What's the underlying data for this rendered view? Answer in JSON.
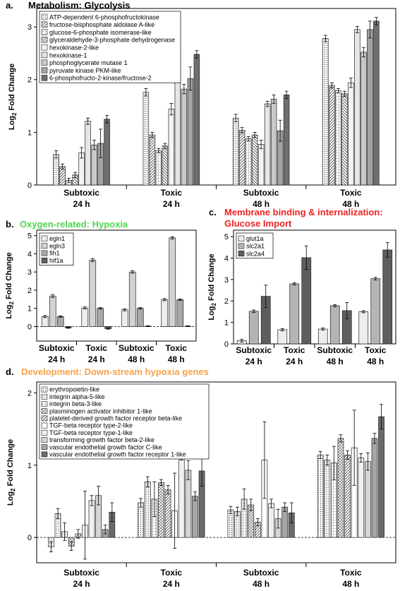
{
  "colors": {
    "title_green": "#4fd44f",
    "title_red": "#ee2222",
    "title_orange": "#f5a24a"
  },
  "chart_data": [
    {
      "id": "a",
      "type": "bar",
      "panel_letter": "a.",
      "title": "Metabolism: Glycolysis",
      "title_color": "#000000",
      "ylabel": "Log",
      "ylabel_sub": "2",
      "ylabel_rest": " Fold Change",
      "ylim": [
        0,
        3.35
      ],
      "yticks": [
        0,
        1,
        2,
        3
      ],
      "categories": [
        [
          "Subtoxic",
          "24 h"
        ],
        [
          "Toxic",
          "24 h"
        ],
        [
          "Subtoxic",
          "48 h"
        ],
        [
          "Toxic",
          "48 h"
        ]
      ],
      "legend_position": "top-left",
      "series": [
        {
          "name": "ATP-dependent 6-phosphofructokinase",
          "values": [
            0.58,
            1.76,
            1.27,
            2.78
          ],
          "errors": [
            0.07,
            0.07,
            0.07,
            0.06
          ],
          "fill": "#d4d4d4",
          "pattern": "dots"
        },
        {
          "name": "fructose-bisphosphate aldolase A-like",
          "values": [
            0.35,
            0.95,
            1.04,
            1.89
          ],
          "errors": [
            0.05,
            0.05,
            0.05,
            0.05
          ],
          "fill": "#ffffff",
          "pattern": "diag"
        },
        {
          "name": "glucose-6-phosphate isomerase-like",
          "values": [
            0.09,
            0.65,
            0.88,
            1.79
          ],
          "errors": [
            0.04,
            0.04,
            0.04,
            0.04
          ],
          "fill": "#ffffff",
          "pattern": "grid"
        },
        {
          "name": "glyceraldehyde-3-phosphate dehydrogenase",
          "values": [
            0.19,
            0.74,
            0.95,
            1.73
          ],
          "errors": [
            0.05,
            0.05,
            0.05,
            0.05
          ],
          "fill": "#ffffff",
          "pattern": "diag2"
        },
        {
          "name": "hexokinase-2-like",
          "values": [
            0.61,
            1.44,
            0.77,
            1.94
          ],
          "errors": [
            0.1,
            0.11,
            0.08,
            0.09
          ],
          "fill": "#f4f4f4",
          "pattern": "none"
        },
        {
          "name": "hexokinase-1",
          "values": [
            1.21,
            2.6,
            1.54,
            2.95
          ],
          "errors": [
            0.06,
            0.06,
            0.05,
            0.06
          ],
          "fill": "#e6e6e6",
          "pattern": "none"
        },
        {
          "name": "phosphoglycerate mutase 1",
          "values": [
            0.76,
            1.82,
            1.63,
            2.52
          ],
          "errors": [
            0.09,
            0.09,
            0.08,
            0.09
          ],
          "fill": "#c9c9c9",
          "pattern": "none"
        },
        {
          "name": "pyruvate kinase PKM-like",
          "values": [
            0.79,
            2.02,
            1.03,
            2.95
          ],
          "errors": [
            0.27,
            0.22,
            0.2,
            0.16
          ],
          "fill": "#a3a3a3",
          "pattern": "none"
        },
        {
          "name": "6-phosphofructo-2-kinase/fructose-2",
          "values": [
            1.25,
            2.48,
            1.71,
            3.11
          ],
          "errors": [
            0.07,
            0.07,
            0.07,
            0.07
          ],
          "fill": "#6f6f6f",
          "pattern": "none"
        }
      ]
    },
    {
      "id": "b",
      "type": "bar",
      "panel_letter": "b.",
      "title": "Oxygen-related: Hypoxia",
      "title_color": "#4fd44f",
      "ylabel": "Log",
      "ylabel_sub": "2",
      "ylabel_rest": " Fold Change",
      "ylim": [
        -0.8,
        5.3
      ],
      "yticks": [
        0,
        1,
        2,
        3,
        4,
        5
      ],
      "categories": [
        [
          "Subtoxic",
          "24 h"
        ],
        [
          "Toxic",
          "24 h"
        ],
        [
          "Subtoxic",
          "48 h"
        ],
        [
          "Toxic",
          "48 h"
        ]
      ],
      "legend_position": "top-left",
      "series": [
        {
          "name": "egln1",
          "values": [
            0.55,
            1.02,
            0.92,
            1.48
          ],
          "errors": [
            0.06,
            0.06,
            0.06,
            0.06
          ],
          "fill": "#ededed",
          "pattern": "none"
        },
        {
          "name": "egln3",
          "values": [
            1.68,
            3.65,
            3.0,
            4.88
          ],
          "errors": [
            0.08,
            0.08,
            0.07,
            0.06
          ],
          "fill": "#d2d2d2",
          "pattern": "none"
        },
        {
          "name": "fih1",
          "values": [
            0.55,
            1.0,
            1.0,
            1.48
          ],
          "errors": [
            0.04,
            0.04,
            0.04,
            0.04
          ],
          "fill": "#a8a8a8",
          "pattern": "none"
        },
        {
          "name": "hif1a",
          "values": [
            -0.07,
            -0.12,
            0.02,
            0.02
          ],
          "errors": [
            0.03,
            0.03,
            0.02,
            0.02
          ],
          "fill": "#5e5e5e",
          "pattern": "none"
        }
      ]
    },
    {
      "id": "c",
      "type": "bar",
      "panel_letter": "c.",
      "title": "Membrane binding & internalization:",
      "title2": "Glucose Import",
      "title_color": "#ee2222",
      "ylabel": "Log",
      "ylabel_sub": "2",
      "ylabel_rest": " Fold Change",
      "ylim": [
        0,
        5.3
      ],
      "yticks": [
        0,
        1,
        2,
        3,
        4,
        5
      ],
      "categories": [
        [
          "Subtoxic",
          "24 h"
        ],
        [
          "Toxic",
          "24 h"
        ],
        [
          "Subtoxic",
          "48 h"
        ],
        [
          "Toxic",
          "48 h"
        ]
      ],
      "legend_position": "top-left",
      "series": [
        {
          "name": "glut1a",
          "values": [
            0.15,
            0.66,
            0.69,
            1.5
          ],
          "errors": [
            0.06,
            0.05,
            0.05,
            0.05
          ],
          "fill": "#ededed",
          "pattern": "none"
        },
        {
          "name": "slc2a1",
          "values": [
            1.52,
            2.8,
            1.78,
            3.04
          ],
          "errors": [
            0.06,
            0.05,
            0.05,
            0.06
          ],
          "fill": "#b4b4b4",
          "pattern": "none"
        },
        {
          "name": "slc2a4",
          "values": [
            2.22,
            4.02,
            1.55,
            4.38
          ],
          "errors": [
            0.52,
            0.55,
            0.38,
            0.34
          ],
          "fill": "#5e5e5e",
          "pattern": "none"
        }
      ]
    },
    {
      "id": "d",
      "type": "bar",
      "panel_letter": "d.",
      "title": "Development: Down-stream hypoxia genes",
      "title_color": "#f5a24a",
      "ylabel": "Log",
      "ylabel_sub": "2",
      "ylabel_rest": " Fold Change",
      "ylim": [
        -0.35,
        2.15
      ],
      "yticks": [
        0,
        1,
        2
      ],
      "categories": [
        [
          "Subtoxic",
          "24 h"
        ],
        [
          "Toxic",
          "24 h"
        ],
        [
          "Subtoxic",
          "48 h"
        ],
        [
          "Toxic",
          "48 h"
        ]
      ],
      "legend_position": "top-left",
      "series": [
        {
          "name": "erythropoietin-like",
          "values": [
            -0.13,
            0.48,
            0.38,
            1.14
          ],
          "errors": [
            0.07,
            0.06,
            0.05,
            0.05
          ],
          "fill": "#ffffff",
          "pattern": "dots"
        },
        {
          "name": "integrin alpha-5-like",
          "values": [
            0.33,
            0.77,
            0.36,
            1.07
          ],
          "errors": [
            0.07,
            0.07,
            0.06,
            0.07
          ],
          "fill": "#ffffff",
          "pattern": "dots2"
        },
        {
          "name": "integrin beta-3-like",
          "values": [
            0.08,
            0.53,
            0.53,
            1.03
          ],
          "errors": [
            0.12,
            0.24,
            0.14,
            0.23
          ],
          "fill": "#ffffff",
          "pattern": "grid"
        },
        {
          "name": "plasminogen activator inhibitor 1-like",
          "values": [
            -0.12,
            0.76,
            0.45,
            1.37
          ],
          "errors": [
            0.06,
            0.04,
            0.08,
            0.05
          ],
          "fill": "#ffffff",
          "pattern": "grid2"
        },
        {
          "name": "platelet-derived growth factor receptor beta-like",
          "values": [
            0.05,
            0.66,
            0.21,
            1.14
          ],
          "errors": [
            0.06,
            0.06,
            0.05,
            0.06
          ],
          "fill": "#ffffff",
          "pattern": "diag"
        },
        {
          "name": "TGF-beta receptor type-2-like",
          "values": [
            0.17,
            0.37,
            1.07,
            1.24
          ],
          "errors": [
            0.47,
            0.52,
            0.53,
            0.52
          ],
          "fill": "#ffffff",
          "pattern": "none"
        },
        {
          "name": "TGF-beta receptor type-1-like",
          "values": [
            0.51,
            1.13,
            0.47,
            1.1
          ],
          "errors": [
            0.07,
            0.06,
            0.06,
            0.06
          ],
          "fill": "#f0f0f0",
          "pattern": "none"
        },
        {
          "name": "transforming growth factor beta-2-like",
          "values": [
            0.58,
            0.93,
            0.26,
            1.05
          ],
          "errors": [
            0.13,
            0.13,
            0.13,
            0.12
          ],
          "fill": "#d6d6d6",
          "pattern": "none"
        },
        {
          "name": "vascular endothelial growth factor C-like",
          "values": [
            0.11,
            0.57,
            0.42,
            1.37
          ],
          "errors": [
            0.06,
            0.06,
            0.06,
            0.07
          ],
          "fill": "#a6a6a6",
          "pattern": "none"
        },
        {
          "name": "vascular endothelial growth factor receptor 1-like",
          "values": [
            0.35,
            0.92,
            0.34,
            1.67
          ],
          "errors": [
            0.13,
            0.21,
            0.14,
            0.17
          ],
          "fill": "#6a6a6a",
          "pattern": "none"
        }
      ]
    }
  ]
}
